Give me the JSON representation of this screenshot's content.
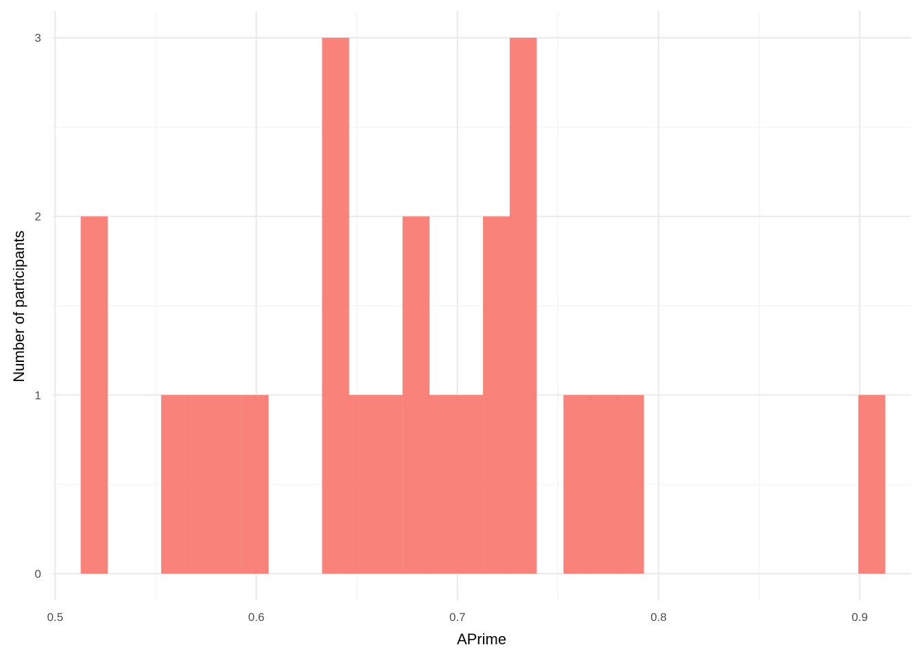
{
  "chart_data": {
    "type": "bar",
    "subtype": "histogram",
    "title": "",
    "xlabel": "APrime",
    "ylabel": "Number of participants",
    "xlim": [
      0.4985,
      0.9255
    ],
    "ylim": [
      -0.15,
      3.15
    ],
    "x_ticks": [
      0.5,
      0.6,
      0.7,
      0.8,
      0.9
    ],
    "x_tick_labels": [
      "0.5",
      "0.6",
      "0.7",
      "0.8",
      "0.9"
    ],
    "y_ticks": [
      0,
      1,
      2,
      3
    ],
    "y_tick_labels": [
      "0",
      "1",
      "2",
      "3"
    ],
    "x_minor_gridlines": [
      0.55,
      0.65,
      0.75,
      0.85
    ],
    "y_minor_gridlines": [
      0.5,
      1.5,
      2.5
    ],
    "grid": true,
    "legend": "none",
    "bin_width": 0.01333,
    "bins": [
      {
        "start": 0.5127,
        "count": 2
      },
      {
        "start": 0.5527,
        "count": 1
      },
      {
        "start": 0.566,
        "count": 1
      },
      {
        "start": 0.5793,
        "count": 1
      },
      {
        "start": 0.5927,
        "count": 1
      },
      {
        "start": 0.6327,
        "count": 3
      },
      {
        "start": 0.646,
        "count": 1
      },
      {
        "start": 0.6593,
        "count": 1
      },
      {
        "start": 0.6727,
        "count": 2
      },
      {
        "start": 0.686,
        "count": 1
      },
      {
        "start": 0.6993,
        "count": 1
      },
      {
        "start": 0.7127,
        "count": 2
      },
      {
        "start": 0.726,
        "count": 3
      },
      {
        "start": 0.7527,
        "count": 1
      },
      {
        "start": 0.766,
        "count": 1
      },
      {
        "start": 0.7793,
        "count": 1
      },
      {
        "start": 0.8993,
        "count": 1
      }
    ],
    "colors": {
      "bar": "#F8766D",
      "grid_major": "#EBEBEB",
      "grid_minor": "#F4F4F4",
      "tick_text": "#4D4D4D"
    }
  }
}
